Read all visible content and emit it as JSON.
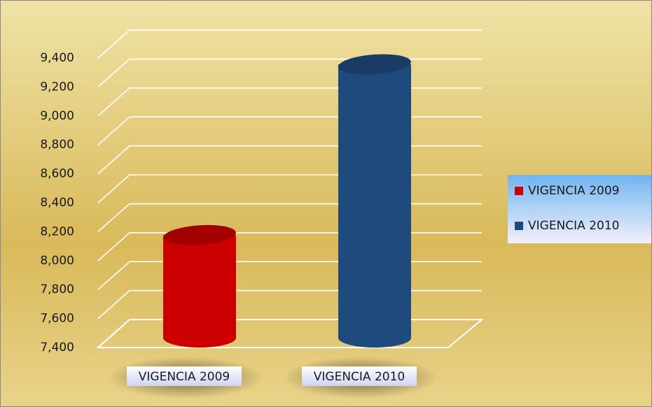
{
  "chart_data": {
    "type": "bar3d",
    "categories": [
      "VIGENCIA 2009",
      "VIGENCIA 2010"
    ],
    "values": [
      8080,
      9260
    ],
    "colors": [
      "#cc0000",
      "#1f4a7e"
    ],
    "ylim": [
      7400,
      9400
    ],
    "yticks": [
      {
        "value": 7400,
        "label": "7,400"
      },
      {
        "value": 7600,
        "label": "7,600"
      },
      {
        "value": 7800,
        "label": "7,800"
      },
      {
        "value": 8000,
        "label": "8,000"
      },
      {
        "value": 8200,
        "label": "8,200"
      },
      {
        "value": 8400,
        "label": "8,400"
      },
      {
        "value": 8600,
        "label": "8,600"
      },
      {
        "value": 8800,
        "label": "8,800"
      },
      {
        "value": 9000,
        "label": "9,000"
      },
      {
        "value": 9200,
        "label": "9,200"
      },
      {
        "value": 9400,
        "label": "9,400"
      }
    ],
    "grid": true,
    "legend": "right"
  }
}
